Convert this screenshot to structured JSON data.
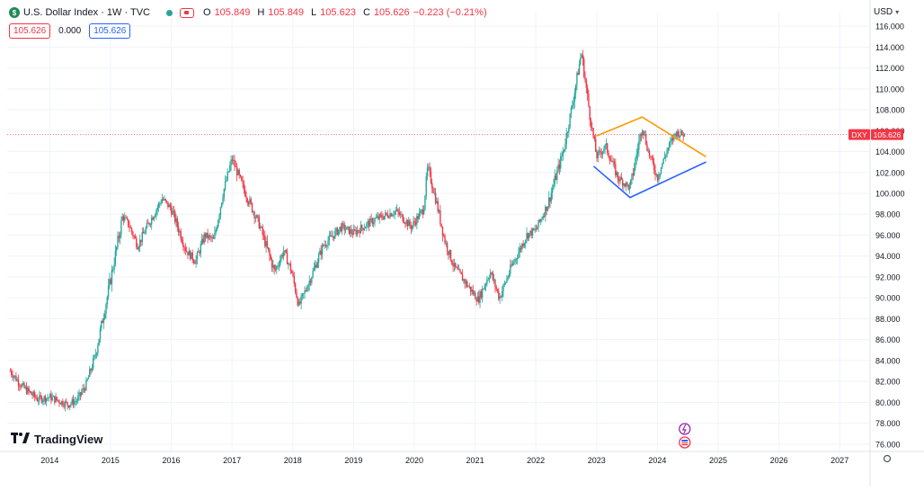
{
  "legend": {
    "symbol_icon": "dollar-symbol-icon",
    "title": "U.S. Dollar Index · 1W · TVC",
    "open_label": "O",
    "open": "105.849",
    "high_label": "H",
    "high": "105.849",
    "low_label": "L",
    "low": "105.623",
    "close_label": "C",
    "close": "105.626",
    "change": "−0.223 (−0.21%)"
  },
  "badges": {
    "sell": "105.626",
    "spread": "0.000",
    "buy": "105.626"
  },
  "currency_label": "USD",
  "price_tag": {
    "symbol": "DXY",
    "value": "105.626"
  },
  "branding": "TradingView",
  "colors": {
    "up": "#26a69a",
    "down": "#f23645",
    "pattern_upper": "#ff9800",
    "pattern_lower": "#2962ff",
    "grid": "#f0f3fa"
  },
  "chart_data": {
    "type": "candlestick",
    "timeframe": "1W",
    "x_axis_ticks": [
      "2014",
      "2015",
      "2016",
      "2017",
      "2018",
      "2019",
      "2020",
      "2021",
      "2022",
      "2023",
      "2024",
      "2025",
      "2026",
      "2027"
    ],
    "y_axis_ticks": [
      "116.000",
      "114.000",
      "112.000",
      "110.000",
      "108.000",
      "106.000",
      "104.000",
      "102.000",
      "100.000",
      "98.000",
      "96.000",
      "94.000",
      "92.000",
      "90.000",
      "88.000",
      "86.000",
      "84.000",
      "82.000",
      "80.000",
      "78.000",
      "76.000"
    ],
    "ylim": [
      75.3,
      117.3
    ],
    "xlim": [
      2013.3,
      2027.5
    ],
    "grid": true,
    "price_anchors": [
      [
        2013.35,
        83.0
      ],
      [
        2013.55,
        81.5
      ],
      [
        2013.8,
        80.3
      ],
      [
        2014.0,
        80.5
      ],
      [
        2014.3,
        79.8
      ],
      [
        2014.45,
        80.2
      ],
      [
        2014.6,
        81.7
      ],
      [
        2014.75,
        84.5
      ],
      [
        2014.95,
        90.2
      ],
      [
        2015.2,
        97.8
      ],
      [
        2015.3,
        97.0
      ],
      [
        2015.45,
        95.0
      ],
      [
        2015.6,
        96.8
      ],
      [
        2015.85,
        99.5
      ],
      [
        2016.0,
        98.5
      ],
      [
        2016.25,
        94.5
      ],
      [
        2016.4,
        93.5
      ],
      [
        2016.55,
        96.0
      ],
      [
        2016.7,
        95.5
      ],
      [
        2016.85,
        100.0
      ],
      [
        2017.0,
        103.3
      ],
      [
        2017.2,
        100.3
      ],
      [
        2017.45,
        97.0
      ],
      [
        2017.7,
        92.5
      ],
      [
        2017.85,
        94.5
      ],
      [
        2017.98,
        92.5
      ],
      [
        2018.1,
        89.2
      ],
      [
        2018.3,
        92.0
      ],
      [
        2018.5,
        95.0
      ],
      [
        2018.8,
        96.8
      ],
      [
        2019.0,
        96.2
      ],
      [
        2019.35,
        97.5
      ],
      [
        2019.7,
        98.3
      ],
      [
        2019.95,
        96.8
      ],
      [
        2020.15,
        98.5
      ],
      [
        2020.22,
        102.5
      ],
      [
        2020.35,
        99.5
      ],
      [
        2020.5,
        95.5
      ],
      [
        2020.65,
        93.0
      ],
      [
        2020.9,
        91.0
      ],
      [
        2021.05,
        89.8
      ],
      [
        2021.25,
        92.5
      ],
      [
        2021.4,
        90.0
      ],
      [
        2021.6,
        93.0
      ],
      [
        2021.85,
        96.0
      ],
      [
        2022.0,
        96.5
      ],
      [
        2022.2,
        99.0
      ],
      [
        2022.45,
        104.0
      ],
      [
        2022.6,
        108.5
      ],
      [
        2022.75,
        113.5
      ],
      [
        2022.9,
        107.0
      ],
      [
        2023.0,
        103.5
      ],
      [
        2023.15,
        104.5
      ],
      [
        2023.35,
        101.5
      ],
      [
        2023.55,
        100.5
      ],
      [
        2023.75,
        106.5
      ],
      [
        2023.85,
        104.0
      ],
      [
        2024.0,
        101.5
      ],
      [
        2024.15,
        104.0
      ],
      [
        2024.3,
        105.8
      ],
      [
        2024.45,
        105.626
      ]
    ],
    "pattern": {
      "upper_line": [
        [
          2023.0,
          105.5
        ],
        [
          2023.75,
          107.3
        ],
        [
          2024.8,
          103.5
        ]
      ],
      "lower_line": [
        [
          2022.95,
          102.6
        ],
        [
          2023.55,
          99.6
        ],
        [
          2024.8,
          103.0
        ]
      ]
    },
    "last_price_line": 105.626
  }
}
